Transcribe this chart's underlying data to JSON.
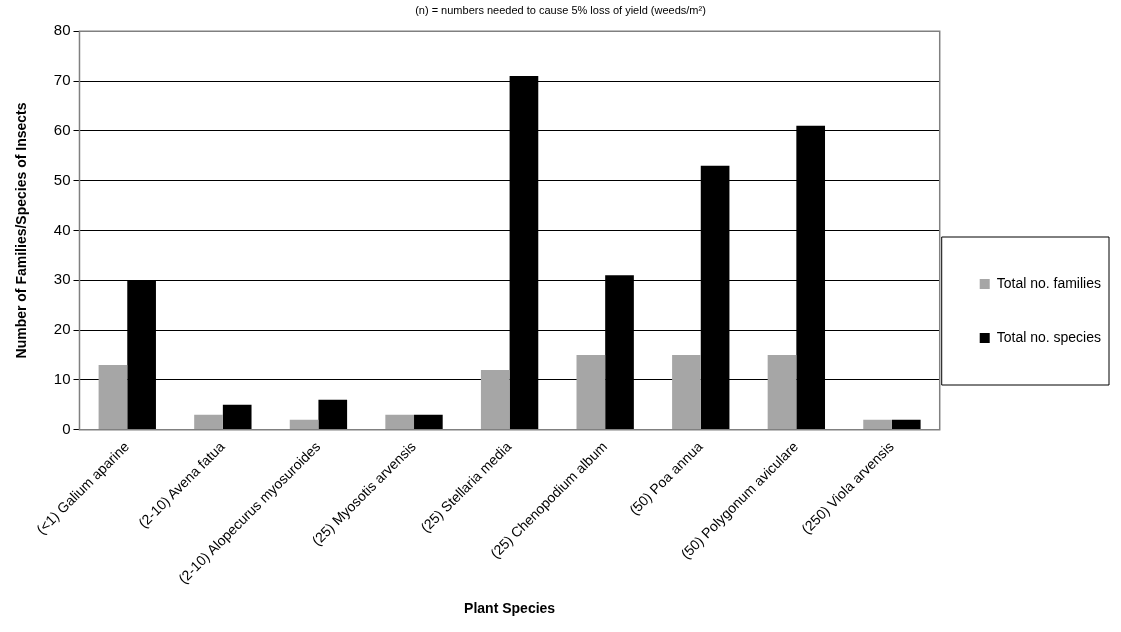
{
  "chart_data": {
    "type": "bar",
    "subtitle": "(n) = numbers needed to cause 5% loss of yield (weeds/m²)",
    "xlabel": "Plant Species",
    "ylabel": "Number of Families/Species of Insects",
    "categories": [
      "(<1) Galium aparine",
      "(2-10) Avena fatua",
      "(2-10) Alopecurus myosuroides",
      "(25) Myosotis arvensis",
      "(25) Stellaria media",
      "(25) Chenopodium album",
      "(50) Poa annua",
      "(50) Polygonum aviculare",
      "(250) Viola arvensis"
    ],
    "series": [
      {
        "name": "Total no. families",
        "color": "#a6a6a6",
        "values": [
          13,
          3,
          2,
          3,
          12,
          15,
          15,
          15,
          2
        ]
      },
      {
        "name": "Total no. species",
        "color": "#000000",
        "values": [
          30,
          5,
          6,
          3,
          71,
          31,
          53,
          61,
          2
        ]
      }
    ],
    "ylim": [
      0,
      80
    ],
    "yticks": [
      0,
      10,
      20,
      30,
      40,
      50,
      60,
      70,
      80
    ],
    "grid": "y",
    "legend": "right"
  }
}
